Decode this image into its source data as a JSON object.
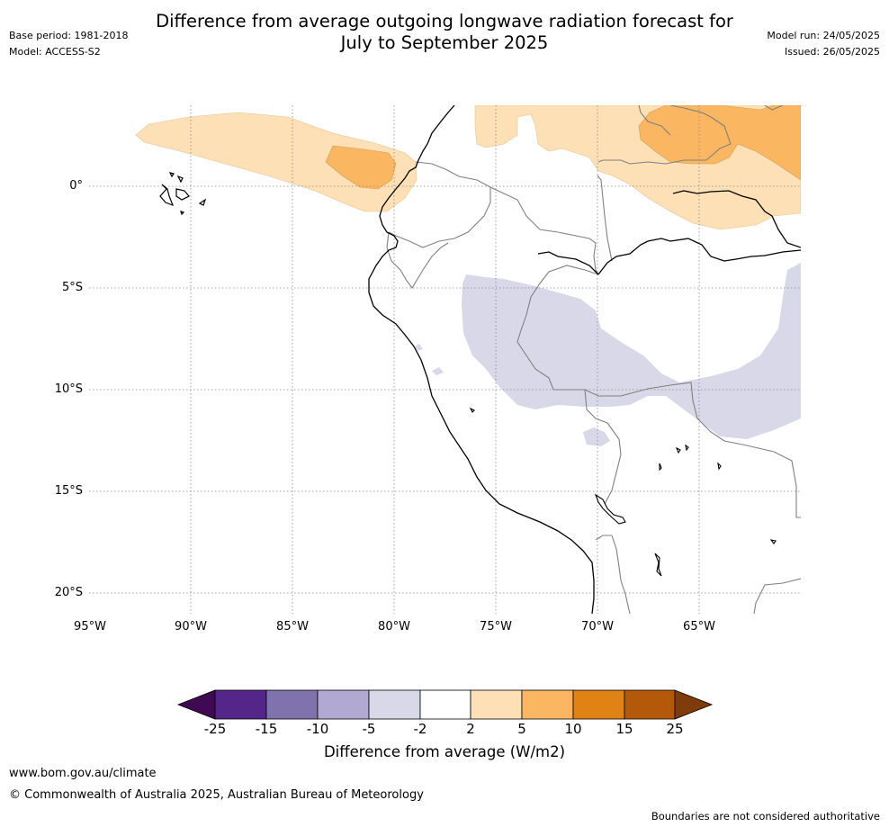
{
  "header": {
    "title_line1": "Difference from average outgoing longwave radiation forecast for",
    "title_line2": "July to September 2025",
    "base_period": "Base period: 1981-2018",
    "model": "Model: ACCESS-S2",
    "model_run": "Model run: 24/05/2025",
    "issued": "Issued: 26/05/2025"
  },
  "map": {
    "lat_labels": [
      "0°",
      "5°S",
      "10°S",
      "15°S",
      "20°S"
    ],
    "lon_labels": [
      "95°W",
      "90°W",
      "85°W",
      "80°W",
      "75°W",
      "70°W",
      "65°W"
    ],
    "colors": {
      "coastline": "#000000",
      "borders": "#808080",
      "gridlines": "#888888",
      "light_orange": "#fde0b5",
      "mid_orange": "#fbb662",
      "light_purple": "#d8d8e9"
    }
  },
  "colorbar": {
    "title": "Difference from average (W/m2)",
    "tick_labels": [
      "-25",
      "-15",
      "-10",
      "-5",
      "-2",
      "2",
      "5",
      "10",
      "15",
      "25"
    ],
    "colors": [
      "#3f0a54",
      "#54268a",
      "#8072ad",
      "#b1a9d1",
      "#d8d8e9",
      "#ffffff",
      "#fde0b5",
      "#fbb662",
      "#e08214",
      "#b35909",
      "#7f3b08"
    ]
  },
  "footer": {
    "url": "www.bom.gov.au/climate",
    "copyright": "© Commonwealth of Australia 2025, Australian Bureau of Meteorology",
    "disclaimer": "Boundaries are not considered authoritative"
  }
}
